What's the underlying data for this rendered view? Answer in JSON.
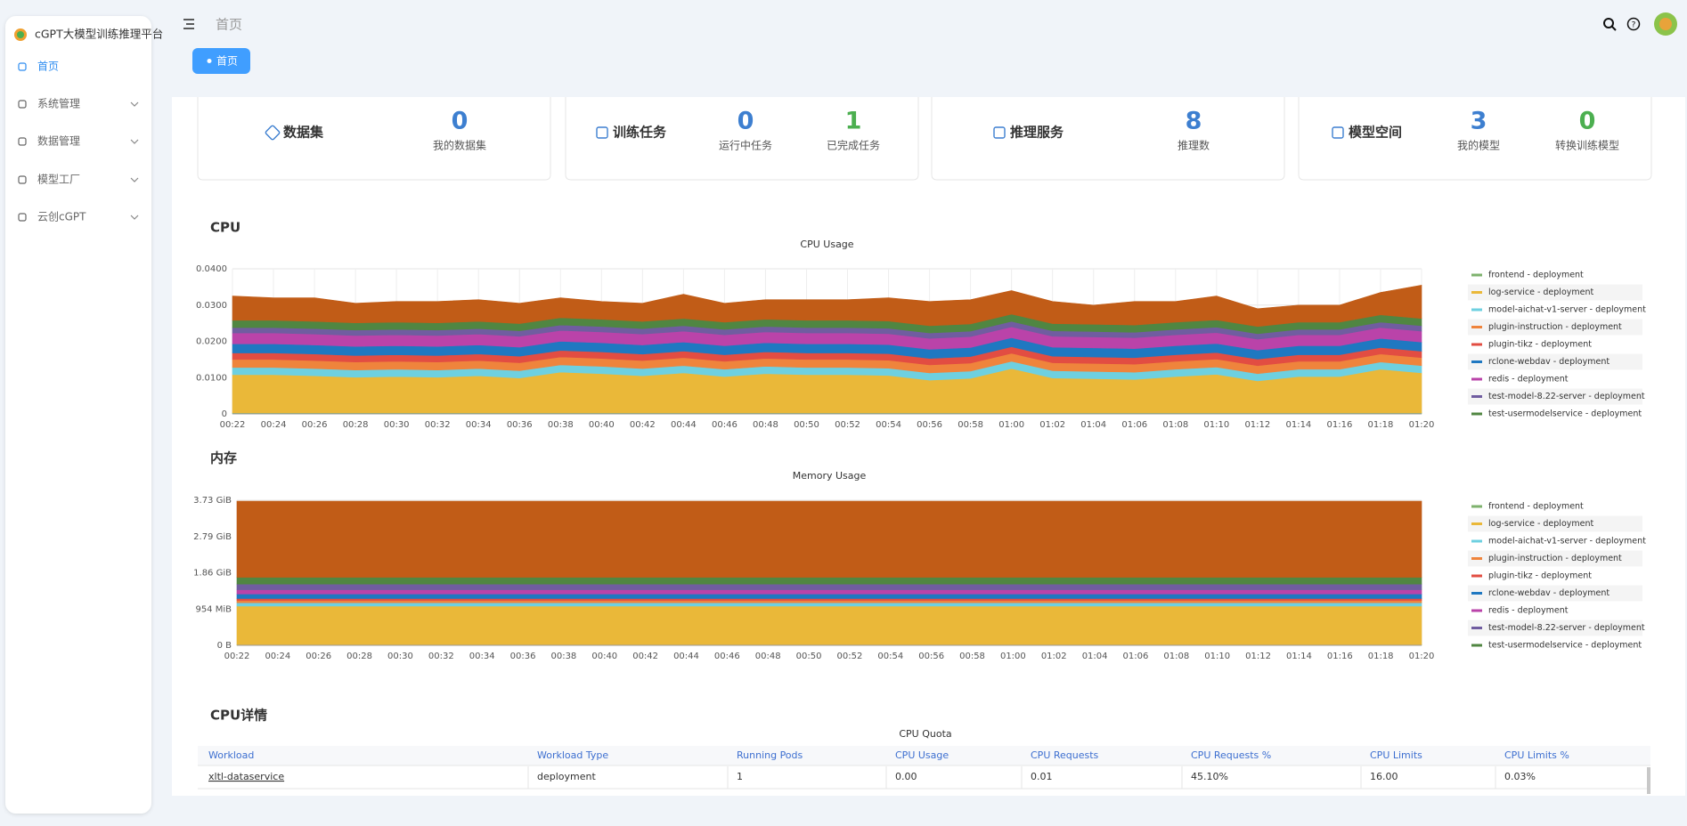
{
  "sidebar": {
    "title": "cGPT大模型训练推理平台",
    "items": [
      "首页",
      "系统管理",
      "数据管理",
      "模型工厂",
      "云创cGPT"
    ]
  },
  "header": {
    "breadcrumb": "首页",
    "tab": "首页"
  },
  "stats": [
    {
      "title": "数据集",
      "metrics": [
        {
          "value": 0,
          "label": "我的数据集",
          "color": "#3d7fd0"
        }
      ]
    },
    {
      "title": "训练任务",
      "metrics": [
        {
          "value": 0,
          "label": "运行中任务",
          "color": "#3d7fd0"
        },
        {
          "value": 1,
          "label": "已完成任务",
          "color": "#4caf50"
        }
      ]
    },
    {
      "title": "推理服务",
      "metrics": [
        {
          "value": 8,
          "label": "推理数",
          "color": "#3d7fd0"
        }
      ]
    },
    {
      "title": "模型空间",
      "metrics": [
        {
          "value": 3,
          "label": "我的模型",
          "color": "#3d7fd0"
        },
        {
          "value": 0,
          "label": "转换训练模型",
          "color": "#4caf50"
        }
      ]
    }
  ],
  "sections": [
    "CPU",
    "内存",
    "CPU详情"
  ],
  "chart_data": [
    {
      "type": "area",
      "stacked": true,
      "title": "CPU Usage",
      "grid": true,
      "categories": [
        "00:22",
        "00:24",
        "00:26",
        "00:28",
        "00:30",
        "00:32",
        "00:34",
        "00:36",
        "00:38",
        "00:40",
        "00:42",
        "00:44",
        "00:46",
        "00:48",
        "00:50",
        "00:52",
        "00:54",
        "00:56",
        "00:58",
        "01:00",
        "01:02",
        "01:04",
        "01:06",
        "01:08",
        "01:10",
        "01:12",
        "01:14",
        "01:16",
        "01:18",
        "01:20"
      ],
      "ylim": [
        0,
        0.04
      ],
      "yticks": [
        0,
        {
          "value": 0.01,
          "label": "0.0100"
        },
        {
          "value": 0.02,
          "label": "0.0200"
        },
        {
          "value": 0.03,
          "label": "0.0300"
        },
        {
          "value": 0.04,
          "label": "0.0400"
        }
      ],
      "series": [
        {
          "name": "frontend - deployment",
          "color": "#7eb26d",
          "values": [
            0.0003,
            0.0003,
            0.0003,
            0.0003,
            0.0003,
            0.0003,
            0.0003,
            0.0003,
            0.0003,
            0.0003,
            0.0003,
            0.0003,
            0.0003,
            0.0003,
            0.0003,
            0.0003,
            0.0003,
            0.0003,
            0.0003,
            0.0003,
            0.0003,
            0.0003,
            0.0003,
            0.0003,
            0.0003,
            0.0003,
            0.0003,
            0.0003,
            0.0003,
            0.0003
          ]
        },
        {
          "name": "log-service - deployment",
          "color": "#eab839",
          "values": [
            0.0105,
            0.0105,
            0.0102,
            0.0098,
            0.01,
            0.0098,
            0.0102,
            0.0096,
            0.0112,
            0.0108,
            0.0102,
            0.011,
            0.01,
            0.0108,
            0.0105,
            0.0105,
            0.0103,
            0.009,
            0.0095,
            0.0122,
            0.0096,
            0.0094,
            0.0092,
            0.01,
            0.0106,
            0.0088,
            0.01,
            0.01,
            0.012,
            0.011
          ]
        },
        {
          "name": "model-aichat-v1-server - deployment",
          "color": "#6ed0e0",
          "values": [
            0.002,
            0.002,
            0.002,
            0.002,
            0.002,
            0.002,
            0.002,
            0.002,
            0.002,
            0.002,
            0.002,
            0.002,
            0.002,
            0.002,
            0.002,
            0.002,
            0.002,
            0.002,
            0.002,
            0.002,
            0.002,
            0.002,
            0.002,
            0.002,
            0.002,
            0.002,
            0.002,
            0.002,
            0.002,
            0.002
          ]
        },
        {
          "name": "plugin-instruction - deployment",
          "color": "#ef843c",
          "values": [
            0.0022,
            0.0022,
            0.0022,
            0.0022,
            0.0022,
            0.0022,
            0.0022,
            0.0022,
            0.0022,
            0.0022,
            0.0022,
            0.0022,
            0.0022,
            0.0022,
            0.0022,
            0.0022,
            0.0022,
            0.0022,
            0.0022,
            0.0022,
            0.0022,
            0.0022,
            0.0022,
            0.0022,
            0.0022,
            0.0022,
            0.0022,
            0.0022,
            0.0022,
            0.0022
          ]
        },
        {
          "name": "plugin-tikz - deployment",
          "color": "#e24d42",
          "values": [
            0.0018,
            0.0018,
            0.0018,
            0.0018,
            0.0018,
            0.0018,
            0.0018,
            0.0018,
            0.0018,
            0.0018,
            0.0018,
            0.0018,
            0.0018,
            0.0018,
            0.0018,
            0.0018,
            0.0018,
            0.0018,
            0.0018,
            0.0018,
            0.0018,
            0.0018,
            0.0018,
            0.0018,
            0.0018,
            0.0018,
            0.0018,
            0.0018,
            0.0018,
            0.0018
          ]
        },
        {
          "name": "rclone-webdav - deployment",
          "color": "#1f78c1",
          "values": [
            0.0025,
            0.0025,
            0.0025,
            0.0025,
            0.0025,
            0.0025,
            0.0025,
            0.0025,
            0.0025,
            0.0025,
            0.0025,
            0.0025,
            0.0025,
            0.0025,
            0.0025,
            0.0025,
            0.0025,
            0.0025,
            0.0025,
            0.0025,
            0.0025,
            0.0025,
            0.0025,
            0.0025,
            0.0025,
            0.0025,
            0.0025,
            0.0025,
            0.0025,
            0.0025
          ]
        },
        {
          "name": "redis - deployment",
          "color": "#ba43a9",
          "values": [
            0.003,
            0.003,
            0.003,
            0.003,
            0.003,
            0.003,
            0.003,
            0.003,
            0.003,
            0.003,
            0.003,
            0.003,
            0.003,
            0.003,
            0.003,
            0.003,
            0.003,
            0.003,
            0.003,
            0.003,
            0.003,
            0.003,
            0.003,
            0.003,
            0.003,
            0.003,
            0.003,
            0.003,
            0.003,
            0.003
          ]
        },
        {
          "name": "test-model-8.22-server - deployment",
          "color": "#705da0",
          "values": [
            0.0015,
            0.0015,
            0.0015,
            0.0015,
            0.0015,
            0.0015,
            0.0015,
            0.0015,
            0.0015,
            0.0015,
            0.0015,
            0.0015,
            0.0015,
            0.0015,
            0.0015,
            0.0015,
            0.0015,
            0.0015,
            0.0015,
            0.0015,
            0.0015,
            0.0015,
            0.0015,
            0.0015,
            0.0015,
            0.0015,
            0.0015,
            0.0015,
            0.0015,
            0.0015
          ]
        },
        {
          "name": "test-usermodelservice - deployment",
          "color": "#508642",
          "values": [
            0.002,
            0.002,
            0.002,
            0.002,
            0.002,
            0.002,
            0.002,
            0.002,
            0.002,
            0.002,
            0.002,
            0.002,
            0.002,
            0.002,
            0.002,
            0.002,
            0.002,
            0.002,
            0.002,
            0.002,
            0.002,
            0.002,
            0.002,
            0.002,
            0.002,
            0.002,
            0.002,
            0.002,
            0.002,
            0.002
          ]
        },
        {
          "color": "#c15c17",
          "values": [
            0.0067,
            0.0062,
            0.0065,
            0.0054,
            0.0057,
            0.0059,
            0.006,
            0.0056,
            0.0055,
            0.0049,
            0.005,
            0.0067,
            0.0052,
            0.0054,
            0.0057,
            0.0057,
            0.0064,
            0.0067,
            0.0067,
            0.0065,
            0.0061,
            0.0053,
            0.0065,
            0.0057,
            0.0066,
            0.0049,
            0.0047,
            0.0047,
            0.0062,
            0.0092
          ]
        }
      ]
    },
    {
      "type": "area",
      "stacked": true,
      "title": "Memory Usage",
      "grid": true,
      "categories": [
        "00:22",
        "00:24",
        "00:26",
        "00:28",
        "00:30",
        "00:32",
        "00:34",
        "00:36",
        "00:38",
        "00:40",
        "00:42",
        "00:44",
        "00:46",
        "00:48",
        "00:50",
        "00:52",
        "00:54",
        "00:56",
        "00:58",
        "01:00",
        "01:02",
        "01:04",
        "01:06",
        "01:08",
        "01:10",
        "01:12",
        "01:14",
        "01:16",
        "01:18",
        "01:20"
      ],
      "ylim": [
        0,
        3816
      ],
      "yticks": [
        {
          "value": 0,
          "label": "0 B"
        },
        {
          "value": 954,
          "label": "954 MiB"
        },
        {
          "value": 1908,
          "label": "1.86 GiB"
        },
        {
          "value": 2862,
          "label": "2.79 GiB"
        },
        {
          "value": 3816,
          "label": "3.73 GiB"
        }
      ],
      "series": [
        {
          "name": "frontend - deployment",
          "color": "#7eb26d",
          "values": [
            20,
            20,
            20,
            20,
            20,
            20,
            20,
            20,
            20,
            20,
            20,
            20,
            20,
            20,
            20,
            20,
            20,
            20,
            20,
            20,
            20,
            20,
            20,
            20,
            20,
            20,
            20,
            20,
            20,
            20
          ]
        },
        {
          "name": "log-service - deployment",
          "color": "#eab839",
          "values": [
            1010,
            1010,
            1010,
            1010,
            1010,
            1010,
            1010,
            1010,
            1010,
            1010,
            1010,
            1010,
            1010,
            1010,
            1010,
            1010,
            1010,
            1010,
            1010,
            1010,
            1010,
            1010,
            1010,
            1010,
            1010,
            1010,
            1010,
            1010,
            1010,
            1010
          ]
        },
        {
          "name": "model-aichat-v1-server - deployment",
          "color": "#6ed0e0",
          "values": [
            90,
            90,
            90,
            90,
            90,
            90,
            90,
            90,
            90,
            90,
            90,
            90,
            90,
            90,
            90,
            90,
            90,
            90,
            90,
            90,
            90,
            90,
            90,
            90,
            90,
            90,
            90,
            90,
            90,
            90
          ]
        },
        {
          "name": "plugin-instruction - deployment",
          "color": "#ef843c",
          "values": [
            60,
            60,
            60,
            60,
            60,
            60,
            60,
            60,
            60,
            60,
            60,
            60,
            60,
            60,
            60,
            60,
            60,
            60,
            60,
            60,
            60,
            60,
            60,
            60,
            60,
            60,
            60,
            60,
            60,
            60
          ]
        },
        {
          "name": "plugin-tikz - deployment",
          "color": "#e24d42",
          "values": [
            50,
            50,
            50,
            50,
            50,
            50,
            50,
            50,
            50,
            50,
            50,
            50,
            50,
            50,
            50,
            50,
            50,
            50,
            50,
            50,
            50,
            50,
            50,
            50,
            50,
            50,
            50,
            50,
            50,
            50
          ]
        },
        {
          "name": "rclone-webdav - deployment",
          "color": "#1f78c1",
          "values": [
            120,
            120,
            120,
            120,
            120,
            120,
            120,
            120,
            120,
            120,
            120,
            120,
            120,
            120,
            120,
            120,
            120,
            120,
            120,
            120,
            120,
            120,
            120,
            120,
            120,
            120,
            120,
            120,
            120,
            120
          ]
        },
        {
          "name": "redis - deployment",
          "color": "#ba43a9",
          "values": [
            110,
            110,
            110,
            110,
            110,
            110,
            110,
            110,
            110,
            110,
            110,
            110,
            110,
            110,
            110,
            110,
            110,
            110,
            110,
            110,
            110,
            110,
            110,
            110,
            110,
            110,
            110,
            110,
            110,
            110
          ]
        },
        {
          "name": "test-model-8.22-server - deployment",
          "color": "#705da0",
          "values": [
            150,
            150,
            150,
            150,
            150,
            150,
            150,
            150,
            150,
            150,
            150,
            150,
            150,
            150,
            150,
            150,
            150,
            150,
            150,
            150,
            150,
            150,
            150,
            150,
            150,
            150,
            150,
            150,
            150,
            150
          ]
        },
        {
          "name": "test-usermodelservice - deployment",
          "color": "#508642",
          "values": [
            180,
            180,
            180,
            180,
            180,
            180,
            180,
            180,
            180,
            180,
            180,
            180,
            180,
            180,
            180,
            180,
            180,
            180,
            180,
            180,
            180,
            180,
            180,
            180,
            180,
            180,
            180,
            180,
            180,
            180
          ]
        },
        {
          "color": "#c15c17",
          "values": [
            2000,
            2000,
            2000,
            2000,
            2000,
            2000,
            2000,
            2000,
            2000,
            2000,
            2000,
            2000,
            2000,
            2000,
            2000,
            2000,
            2000,
            2000,
            2000,
            2000,
            2000,
            2000,
            2000,
            2000,
            2000,
            2000,
            2000,
            2000,
            2000,
            2000
          ]
        }
      ]
    }
  ],
  "table": {
    "title": "CPU Quota",
    "columns": [
      "Workload",
      "Workload Type",
      "Running Pods",
      "CPU Usage",
      "CPU Requests",
      "CPU Requests %",
      "CPU Limits",
      "CPU Limits %"
    ],
    "rows": [
      [
        "xltl-dataservice",
        "deployment",
        "1",
        "0.00",
        "0.01",
        "45.10%",
        "16.00",
        "0.03%"
      ]
    ]
  }
}
